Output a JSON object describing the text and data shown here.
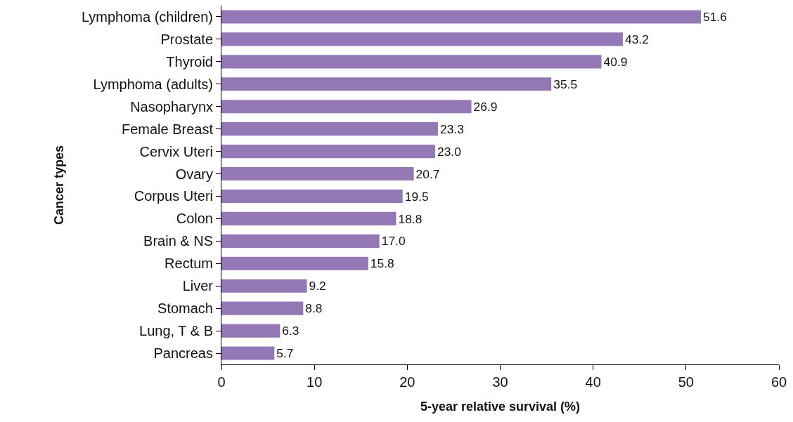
{
  "chart_data": {
    "type": "bar",
    "orientation": "horizontal",
    "xlabel": "5-year relative survival (%)",
    "ylabel": "Cancer types",
    "categories": [
      "Lymphoma (children)",
      "Prostate",
      "Thyroid",
      "Lymphoma (adults)",
      "Nasopharynx",
      "Female Breast",
      "Cervix Uteri",
      "Ovary",
      "Corpus Uteri",
      "Colon",
      "Brain & NS",
      "Rectum",
      "Liver",
      "Stomach",
      "Lung, T & B",
      "Pancreas"
    ],
    "values": [
      51.6,
      43.2,
      40.9,
      35.5,
      26.9,
      23.3,
      23.0,
      20.7,
      19.5,
      18.8,
      17.0,
      15.8,
      9.2,
      8.8,
      6.3,
      5.7
    ],
    "value_labels": [
      "51.6",
      "43.2",
      "40.9",
      "35.5",
      "26.9",
      "23.3",
      "23.0",
      "20.7",
      "19.5",
      "18.8",
      "17.0",
      "15.8",
      "9.2",
      "8.8",
      "6.3",
      "5.7"
    ],
    "color": "#9378b5",
    "xlim": [
      0,
      60
    ],
    "xticks": [
      0,
      10,
      20,
      30,
      40,
      50,
      60
    ]
  }
}
